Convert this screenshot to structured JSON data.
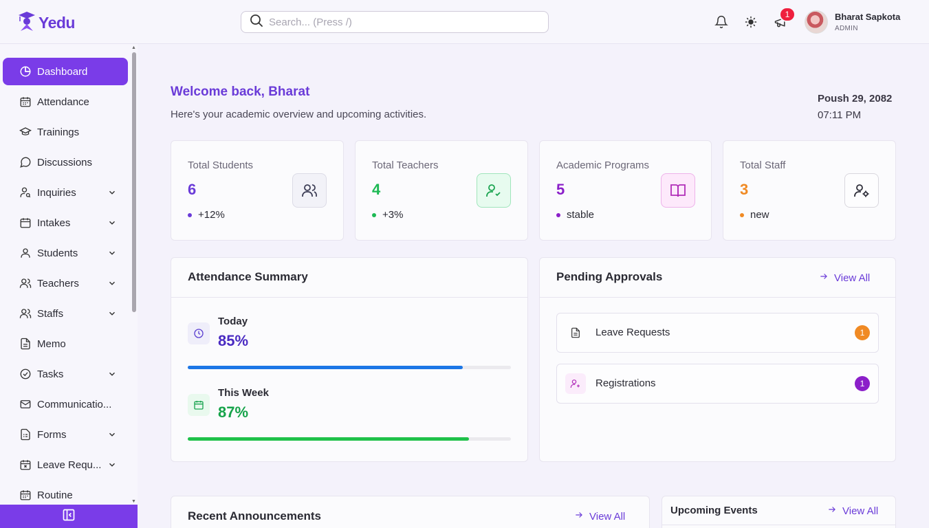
{
  "app": {
    "name": "Yedu"
  },
  "search": {
    "placeholder": "Search... (Press /)"
  },
  "header": {
    "notification_badge": "1"
  },
  "user": {
    "name": "Bharat Sapkota",
    "role": "ADMIN"
  },
  "sidebar": {
    "items": [
      {
        "label": "Dashboard",
        "icon": "pie-chart-icon",
        "active": true
      },
      {
        "label": "Attendance",
        "icon": "calendar-icon"
      },
      {
        "label": "Trainings",
        "icon": "graduation-cap-icon"
      },
      {
        "label": "Discussions",
        "icon": "message-circle-icon"
      },
      {
        "label": "Inquiries",
        "icon": "user-search-icon",
        "expandable": true
      },
      {
        "label": "Intakes",
        "icon": "calendar-icon",
        "expandable": true
      },
      {
        "label": "Students",
        "icon": "user-icon",
        "expandable": true
      },
      {
        "label": "Teachers",
        "icon": "users-icon",
        "expandable": true
      },
      {
        "label": "Staffs",
        "icon": "users-icon",
        "expandable": true
      },
      {
        "label": "Memo",
        "icon": "file-text-icon"
      },
      {
        "label": "Tasks",
        "icon": "check-circle-icon",
        "expandable": true
      },
      {
        "label": "Communicatio...",
        "icon": "mail-icon"
      },
      {
        "label": "Forms",
        "icon": "file-form-icon",
        "expandable": true
      },
      {
        "label": "Leave Requ...",
        "icon": "calendar-x-icon",
        "expandable": true
      },
      {
        "label": "Routine",
        "icon": "calendar-grid-icon"
      }
    ]
  },
  "welcome": {
    "title": "Welcome back, Bharat",
    "subtitle": "Here's your academic overview and upcoming activities.",
    "date": "Poush 29, 2082",
    "time": "07:11 PM"
  },
  "stats": [
    {
      "label": "Total Students",
      "value": "6",
      "trend": "+12%",
      "color": "#6a3bd8",
      "icon": "users-icon"
    },
    {
      "label": "Total Teachers",
      "value": "4",
      "trend": "+3%",
      "color": "#1db954",
      "icon": "user-check-icon"
    },
    {
      "label": "Academic Programs",
      "value": "5",
      "trend": "stable",
      "color": "#8b1fc9",
      "icon": "book-open-icon"
    },
    {
      "label": "Total Staff",
      "value": "3",
      "trend": "new",
      "color": "#f08a24",
      "icon": "user-cog-icon"
    }
  ],
  "attendance": {
    "title": "Attendance Summary",
    "today": {
      "label": "Today",
      "value": "85%",
      "fraction": 0.85,
      "color": "#1c76e6"
    },
    "week": {
      "label": "This Week",
      "value": "87%",
      "fraction": 0.87,
      "color": "#1fc14a"
    }
  },
  "approvals": {
    "title": "Pending Approvals",
    "view_all": "View All",
    "items": [
      {
        "label": "Leave Requests",
        "count": "1",
        "color": "#f08a24",
        "icon": "file-text-icon"
      },
      {
        "label": "Registrations",
        "count": "1",
        "color": "#8b1fc9",
        "icon": "user-plus-icon"
      }
    ]
  },
  "announcements": {
    "title": "Recent Announcements",
    "view_all": "View All"
  },
  "events": {
    "title": "Upcoming Events",
    "view_all": "View All"
  }
}
